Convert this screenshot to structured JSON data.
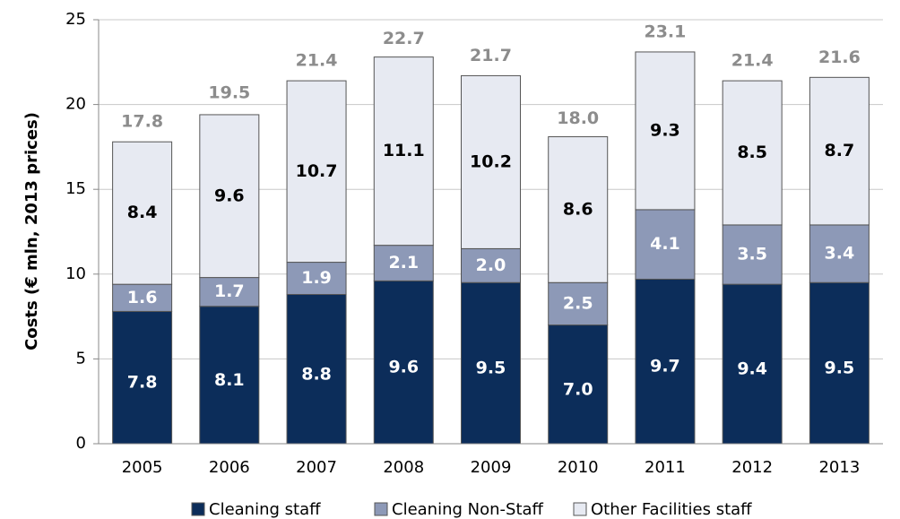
{
  "chart_data": {
    "type": "stacked-bar",
    "y_label": "Costs (€ mln, 2013 prices)",
    "categories": [
      "2005",
      "2006",
      "2007",
      "2008",
      "2009",
      "2010",
      "2011",
      "2012",
      "2013"
    ],
    "series": [
      {
        "name": "Cleaning staff",
        "color": "#0c2d5a",
        "label_color": "#ffffff",
        "values": [
          7.8,
          8.1,
          8.8,
          9.6,
          9.5,
          7.0,
          9.7,
          9.4,
          9.5
        ],
        "value_labels": [
          "7.8",
          "8.1",
          "8.8",
          "9.6",
          "9.5",
          "7.0",
          "9.7",
          "9.4",
          "9.5"
        ]
      },
      {
        "name": "Cleaning Non-Staff",
        "color": "#8d99b7",
        "label_color": "#ffffff",
        "values": [
          1.6,
          1.7,
          1.9,
          2.1,
          2.0,
          2.5,
          4.1,
          3.5,
          3.4
        ],
        "value_labels": [
          "1.6",
          "1.7",
          "1.9",
          "2.1",
          "2.0",
          "2.5",
          "4.1",
          "3.5",
          "3.4"
        ]
      },
      {
        "name": "Other Facilities staff",
        "color": "#e7eaf2",
        "label_color": "#000000",
        "values": [
          8.4,
          9.6,
          10.7,
          11.1,
          10.2,
          8.6,
          9.3,
          8.5,
          8.7
        ],
        "value_labels": [
          "8.4",
          "9.6",
          "10.7",
          "11.1",
          "10.2",
          "8.6",
          "9.3",
          "8.5",
          "8.7"
        ]
      }
    ],
    "totals": {
      "color": "#8c8c8c",
      "values": [
        17.8,
        19.5,
        21.4,
        22.7,
        21.7,
        18.0,
        23.1,
        21.4,
        21.6
      ],
      "value_labels": [
        "17.8",
        "19.5",
        "21.4",
        "22.7",
        "21.7",
        "18.0",
        "23.1",
        "21.4",
        "21.6"
      ]
    },
    "ylim": [
      0,
      25
    ],
    "yticks": [
      0,
      5,
      10,
      15,
      20,
      25
    ],
    "grid": true,
    "legend": "bottom"
  }
}
